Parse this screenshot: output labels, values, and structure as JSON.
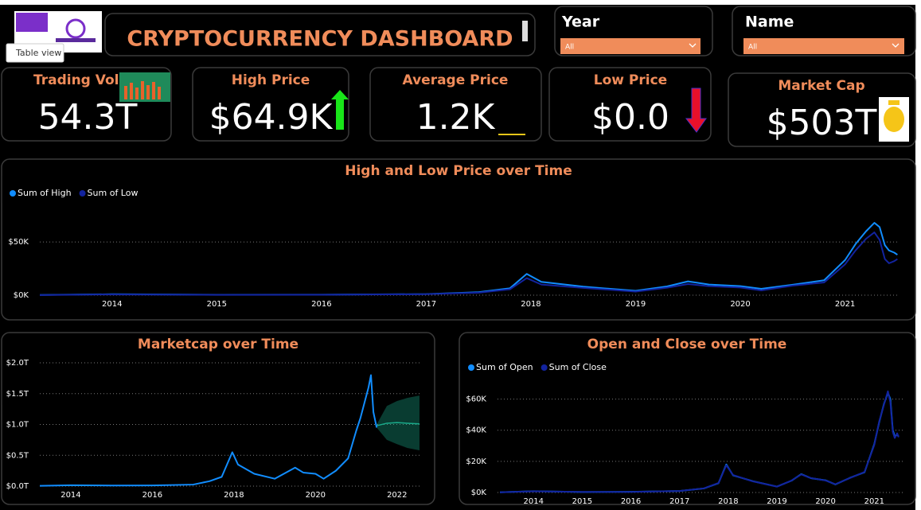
{
  "tooltip": "Table view",
  "header": {
    "title": "CRYPTOCURRENCY DASHBOARD"
  },
  "slicers": [
    {
      "label": "Year",
      "value": "All"
    },
    {
      "label": "Name",
      "value": "All"
    }
  ],
  "kpis": [
    {
      "title": "Trading Volume",
      "value": "54.3T"
    },
    {
      "title": "High Price",
      "value": "$64.9K"
    },
    {
      "title": "Average Price",
      "value": "1.2K"
    },
    {
      "title": "Low Price",
      "value": "$0.0"
    },
    {
      "title": "Market Cap",
      "value": "$503T"
    }
  ],
  "chart_data": [
    {
      "type": "line",
      "title": "High and Low Price over Time",
      "xlim": [
        2013.31,
        2021.52
      ],
      "xticks": [
        2014,
        2015,
        2016,
        2017,
        2018,
        2019,
        2020,
        2021
      ],
      "ylim": [
        0,
        80000
      ],
      "yticks": [
        {
          "value": 0,
          "label": "$0K"
        },
        {
          "value": 50000,
          "label": "$50K"
        }
      ],
      "grid": true,
      "legend": "top-left",
      "series": [
        {
          "name": "Sum of High",
          "color": "#118dff",
          "x": [
            2013.31,
            2014,
            2015,
            2016,
            2017,
            2017.5,
            2017.8,
            2017.96,
            2018.1,
            2018.5,
            2019,
            2019.3,
            2019.5,
            2019.7,
            2020,
            2020.2,
            2020.5,
            2020.8,
            2021,
            2021.1,
            2021.2,
            2021.28,
            2021.33,
            2021.38,
            2021.42,
            2021.47,
            2021.5
          ],
          "values": [
            150,
            900,
            400,
            450,
            1000,
            2800,
            6500,
            20000,
            12500,
            8000,
            4100,
            8200,
            13000,
            10000,
            8500,
            6000,
            9800,
            14000,
            33000,
            48000,
            60000,
            68000,
            64000,
            47000,
            42000,
            40000,
            38000
          ]
        },
        {
          "name": "Sum of Low",
          "color": "#12239e",
          "x": [
            2013.31,
            2014,
            2015,
            2016,
            2017,
            2017.5,
            2017.8,
            2017.96,
            2018.1,
            2018.5,
            2019,
            2019.3,
            2019.5,
            2019.7,
            2020,
            2020.2,
            2020.5,
            2020.8,
            2021,
            2021.1,
            2021.2,
            2021.28,
            2021.33,
            2021.38,
            2021.42,
            2021.47,
            2021.5
          ],
          "values": [
            100,
            700,
            300,
            380,
            900,
            2300,
            5500,
            16000,
            10000,
            6800,
            3400,
            7000,
            10500,
            8500,
            7200,
            4500,
            9000,
            12000,
            29000,
            42000,
            53000,
            59000,
            52000,
            34000,
            30000,
            32000,
            34000
          ]
        }
      ]
    },
    {
      "type": "line",
      "title": "Marketcap over Time",
      "xlim": [
        2013.24,
        2022.57
      ],
      "xticks": [
        2014,
        2016,
        2018,
        2020,
        2022
      ],
      "ylim": [
        0,
        2000000000000
      ],
      "yticks": [
        {
          "value": 0,
          "label": "$0.0T"
        },
        {
          "value": 500000000000,
          "label": "$0.5T"
        },
        {
          "value": 1000000000000,
          "label": "$1.0T"
        },
        {
          "value": 1500000000000,
          "label": "$1.5T"
        },
        {
          "value": 2000000000000,
          "label": "$2.0T"
        }
      ],
      "grid": true,
      "series": [
        {
          "color": "#118dff",
          "x": [
            2013.24,
            2014,
            2015,
            2016,
            2017,
            2017.4,
            2017.7,
            2017.96,
            2018.1,
            2018.5,
            2019,
            2019.5,
            2019.7,
            2020,
            2020.2,
            2020.5,
            2020.8,
            2021,
            2021.1,
            2021.2,
            2021.3,
            2021.36,
            2021.42,
            2021.5
          ],
          "values": [
            5000000000,
            15000000000,
            10000000000,
            12000000000,
            25000000000,
            80000000000,
            150000000000,
            550000000000,
            350000000000,
            200000000000,
            120000000000,
            300000000000,
            220000000000,
            200000000000,
            120000000000,
            250000000000,
            450000000000,
            900000000000,
            1100000000000,
            1350000000000,
            1600000000000,
            1800000000000,
            1200000000000,
            950000000000
          ]
        }
      ],
      "forecast": {
        "color": "#1aab8b",
        "x": [
          2021.5,
          2021.75,
          2022,
          2022.25,
          2022.55
        ],
        "values": [
          980000000000,
          1020000000000,
          1030000000000,
          1020000000000,
          1010000000000
        ],
        "lower": [
          950000000000,
          750000000000,
          680000000000,
          620000000000,
          580000000000
        ],
        "upper": [
          1000000000000,
          1300000000000,
          1380000000000,
          1430000000000,
          1470000000000
        ]
      }
    },
    {
      "type": "line",
      "title": "Open and Close over Time",
      "xlim": [
        2013.26,
        2021.6
      ],
      "xticks": [
        2014,
        2015,
        2016,
        2017,
        2018,
        2019,
        2020,
        2021
      ],
      "ylim": [
        0,
        70000
      ],
      "yticks": [
        {
          "value": 0,
          "label": "$0K"
        },
        {
          "value": 20000,
          "label": "$20K"
        },
        {
          "value": 40000,
          "label": "$40K"
        },
        {
          "value": 60000,
          "label": "$60K"
        }
      ],
      "grid": true,
      "legend": "top-left",
      "series": [
        {
          "name": "Sum of Open",
          "color": "#118dff",
          "x": [
            2013.31,
            2014,
            2015,
            2016,
            2017,
            2017.5,
            2017.8,
            2017.96,
            2018.1,
            2018.5,
            2019,
            2019.3,
            2019.5,
            2019.7,
            2020,
            2020.2,
            2020.5,
            2020.8,
            2021,
            2021.1,
            2021.2,
            2021.28,
            2021.33,
            2021.38,
            2021.42,
            2021.47,
            2021.5
          ],
          "values": [
            120,
            800,
            350,
            420,
            950,
            2600,
            6000,
            18000,
            11000,
            7300,
            3800,
            7600,
            11800,
            9200,
            7800,
            5200,
            9400,
            13000,
            31000,
            45000,
            57000,
            64000,
            60000,
            40000,
            36000,
            37000,
            36000
          ]
        },
        {
          "name": "Sum of Close",
          "color": "#12239e",
          "x": [
            2013.31,
            2014,
            2015,
            2016,
            2017,
            2017.5,
            2017.8,
            2017.96,
            2018.1,
            2018.5,
            2019,
            2019.3,
            2019.5,
            2019.7,
            2020,
            2020.2,
            2020.5,
            2020.8,
            2021,
            2021.1,
            2021.2,
            2021.28,
            2021.33,
            2021.38,
            2021.42,
            2021.47,
            2021.5
          ],
          "values": [
            125,
            790,
            360,
            415,
            960,
            2650,
            6100,
            17500,
            11200,
            7200,
            3750,
            7700,
            11600,
            9300,
            7700,
            5300,
            9300,
            13200,
            30500,
            45500,
            56500,
            65000,
            58000,
            39000,
            35000,
            38000,
            35500
          ]
        }
      ]
    }
  ]
}
